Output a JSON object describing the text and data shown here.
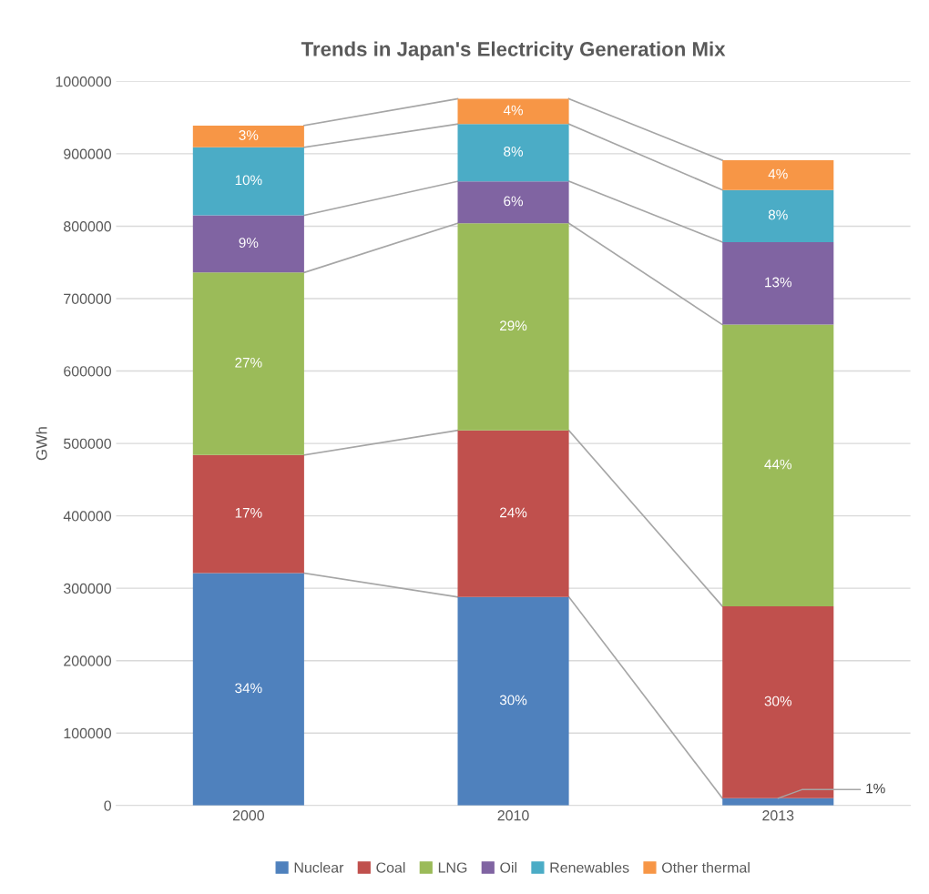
{
  "chart_data": {
    "type": "bar",
    "title": "Trends in Japan's Electricity Generation Mix",
    "ylabel": "GWh",
    "categories": [
      "2000",
      "2010",
      "2013"
    ],
    "stacked": true,
    "series": [
      {
        "name": "Nuclear",
        "color": "#4f81bd",
        "values": [
          321000,
          288000,
          10000
        ]
      },
      {
        "name": "Coal",
        "color": "#c0504d",
        "values": [
          163000,
          230000,
          265000
        ]
      },
      {
        "name": "LNG",
        "color": "#9bbb59",
        "values": [
          252000,
          286000,
          389000
        ]
      },
      {
        "name": "Oil",
        "color": "#8064a2",
        "values": [
          79000,
          58000,
          114000
        ]
      },
      {
        "name": "Renewables",
        "color": "#4bacc6",
        "values": [
          94000,
          79000,
          72000
        ]
      },
      {
        "name": "Other thermal",
        "color": "#f79646",
        "values": [
          30000,
          35000,
          41000
        ]
      }
    ],
    "annotations": [
      "34%",
      "17%",
      "27%",
      "9%",
      "10%",
      "3%",
      "30%",
      "24%",
      "29%",
      "6%",
      "8%",
      "4%",
      {
        "text": "1%",
        "x": "2013",
        "y": 10000
      },
      "30%",
      "44%",
      "13%",
      "8%",
      "4%"
    ],
    "ylim": [
      0,
      1000000
    ],
    "yticks": [
      0,
      100000,
      200000,
      300000,
      400000,
      500000,
      600000,
      700000,
      800000,
      900000,
      1000000
    ],
    "grid": "y",
    "legend": "bottom"
  }
}
